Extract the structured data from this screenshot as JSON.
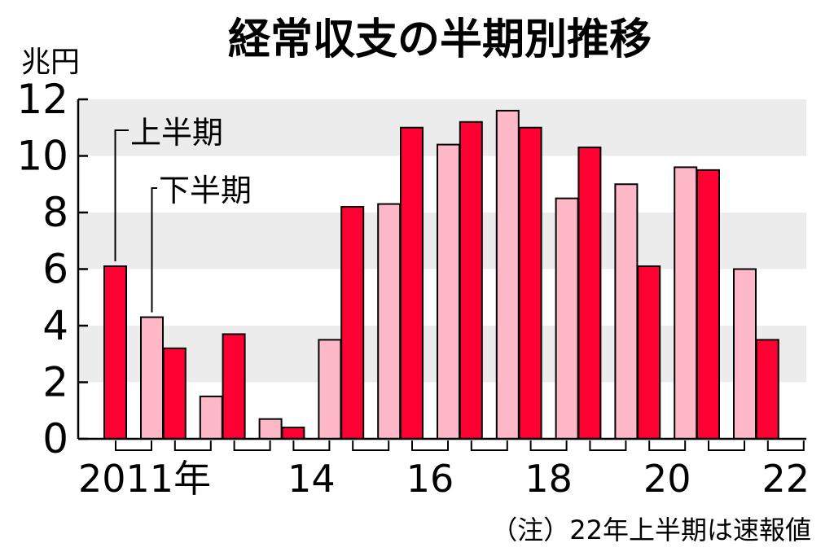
{
  "chart_data": {
    "type": "bar",
    "title": "経常収支の半期別推移",
    "ylabel": "兆円",
    "ylim": [
      0,
      12
    ],
    "yticks": [
      0,
      2,
      4,
      6,
      8,
      10,
      12
    ],
    "grid": "alternating horizontal bands",
    "years": [
      "2011",
      "2012",
      "2013",
      "2014",
      "2015",
      "2016",
      "2017",
      "2018",
      "2019",
      "2020",
      "2021",
      "2022"
    ],
    "x_tick_labels": [
      {
        "year": "2011",
        "label": "2011年"
      },
      {
        "year": "2014",
        "label": "14"
      },
      {
        "year": "2016",
        "label": "16"
      },
      {
        "year": "2018",
        "label": "18"
      },
      {
        "year": "2020",
        "label": "20"
      },
      {
        "year": "2022",
        "label": "22"
      }
    ],
    "series": [
      {
        "name": "上半期",
        "color": "#ff0033",
        "values": [
          6.1,
          3.2,
          3.7,
          0.4,
          8.2,
          11.0,
          11.2,
          11.0,
          10.3,
          6.1,
          9.5,
          3.5
        ]
      },
      {
        "name": "下半期",
        "color": "#ffb8c8",
        "values": [
          4.3,
          1.5,
          0.7,
          3.5,
          8.3,
          10.4,
          11.6,
          8.5,
          9.0,
          9.6,
          6.0,
          null
        ]
      }
    ],
    "note": "（注）22年上半期は速報値"
  }
}
